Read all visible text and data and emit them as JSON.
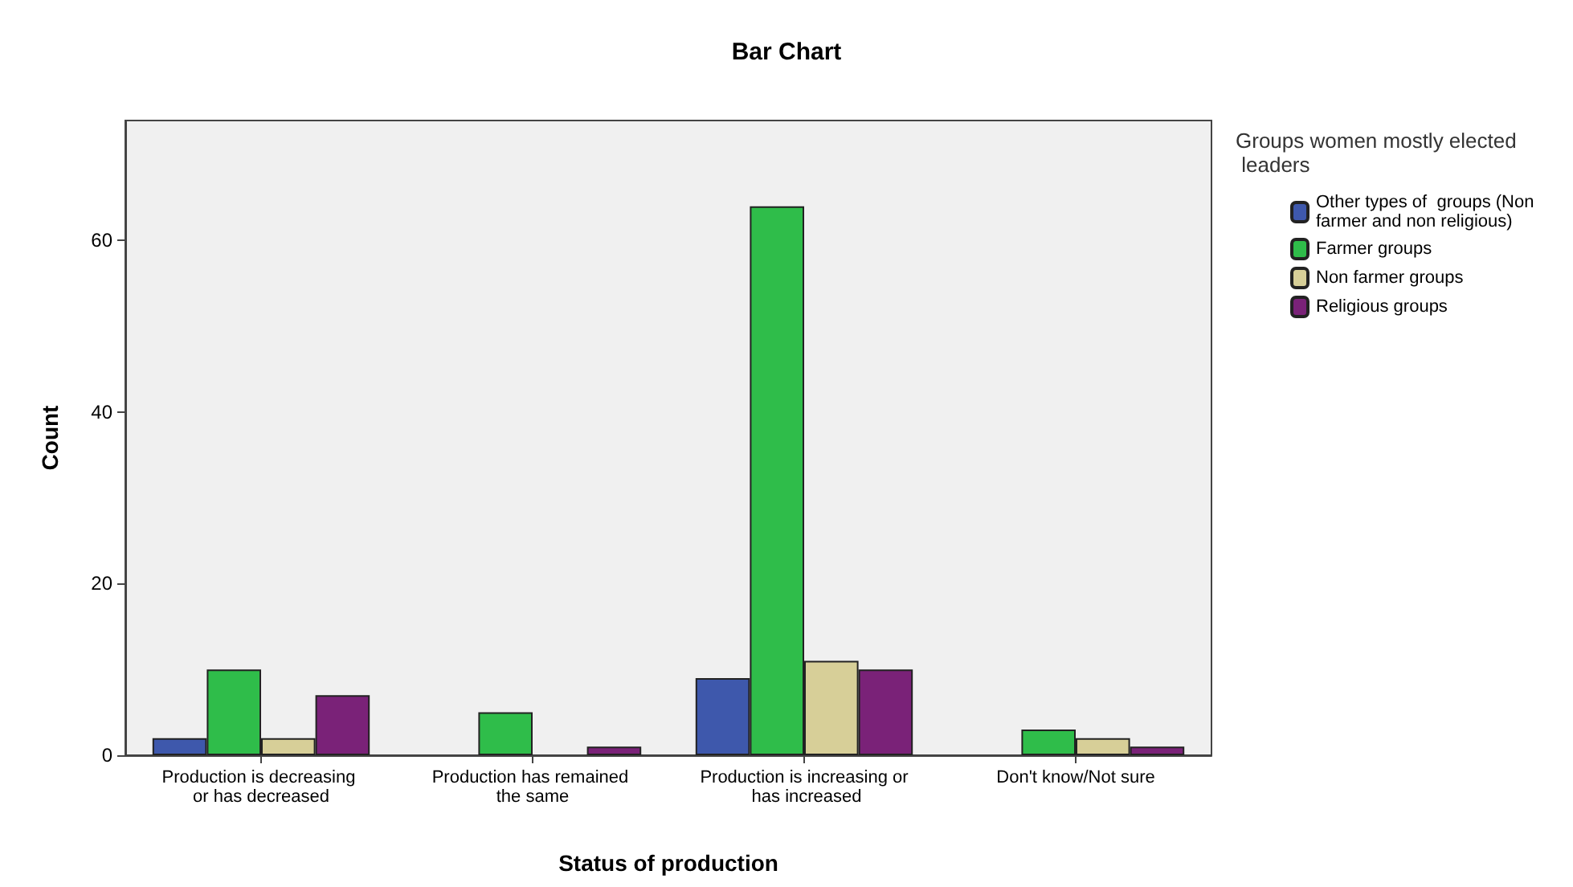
{
  "chart_data": {
    "type": "bar",
    "title": "Bar Chart",
    "xlabel": "Status of production",
    "ylabel": "Count",
    "legend_title": "Groups women mostly elected leaders",
    "categories": [
      "Production is decreasing or has decreased",
      "Production has remained the same",
      "Production is increasing or has increased",
      "Don't know/Not sure"
    ],
    "series": [
      {
        "name": "Other types of  groups (Non farmer and non religious)",
        "color": "#3e58ac",
        "values": [
          2,
          null,
          9,
          null
        ]
      },
      {
        "name": "Farmer groups",
        "color": "#2fbd4a",
        "values": [
          10,
          5,
          64,
          3
        ]
      },
      {
        "name": "Non farmer groups",
        "color": "#d7cf98",
        "values": [
          2,
          null,
          11,
          2
        ]
      },
      {
        "name": "Religious groups",
        "color": "#7a2278",
        "values": [
          7,
          1,
          10,
          1
        ]
      }
    ],
    "ylim": [
      0,
      74
    ],
    "yticks": [
      0,
      20,
      40,
      60
    ],
    "grid": false,
    "legend": "right"
  }
}
